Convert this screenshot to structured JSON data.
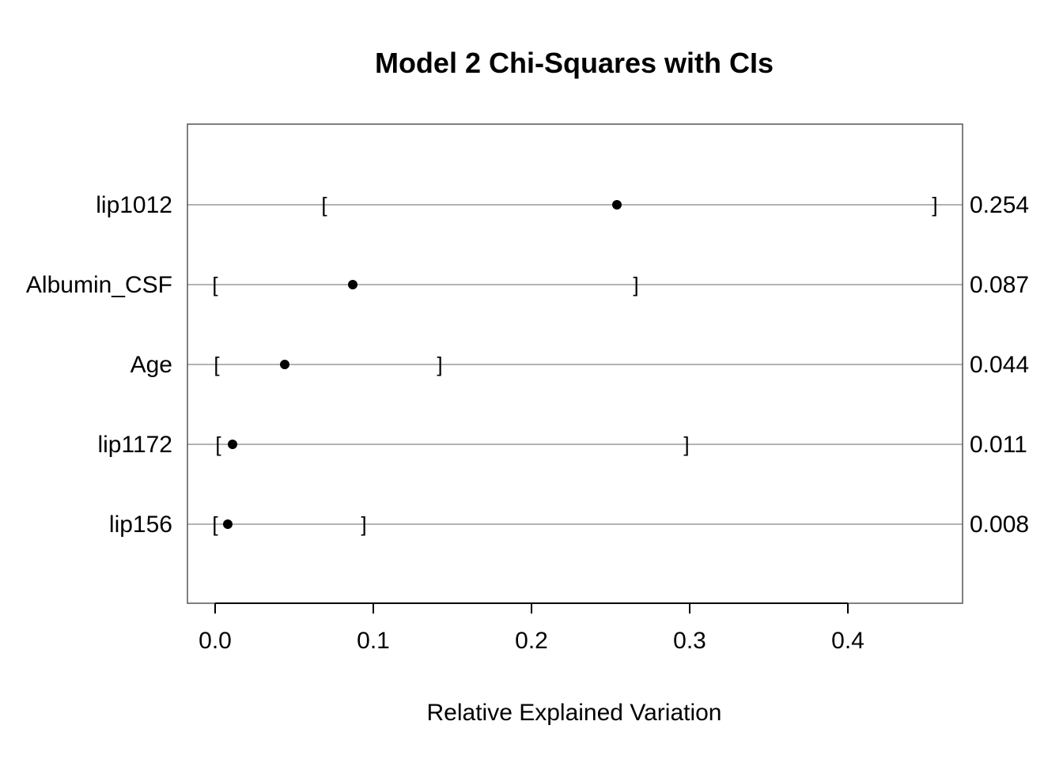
{
  "chart_data": {
    "type": "dot",
    "title": "Model 2 Chi-Squares with CIs",
    "xlabel": "Relative Explained Variation",
    "ylabel": "",
    "xlim": [
      -0.018,
      0.472
    ],
    "xticks": [
      0.0,
      0.1,
      0.2,
      0.3,
      0.4
    ],
    "xtick_labels": [
      "0.0",
      "0.1",
      "0.2",
      "0.3",
      "0.4"
    ],
    "grid": "horizontal lines through each category",
    "categories": [
      "lip1012",
      "Albumin_CSF",
      "Age",
      "lip1172",
      "lip156"
    ],
    "values": [
      0.254,
      0.087,
      0.044,
      0.011,
      0.008
    ],
    "value_labels": [
      "0.254",
      "0.087",
      "0.044",
      "0.011",
      "0.008"
    ],
    "ci_lower": [
      0.069,
      0.0,
      0.001,
      0.002,
      0.0
    ],
    "ci_upper": [
      0.455,
      0.266,
      0.142,
      0.298,
      0.094
    ],
    "colors": {
      "point": "#000000",
      "gridline": "#b3b3b3",
      "frame": "#555555"
    }
  }
}
